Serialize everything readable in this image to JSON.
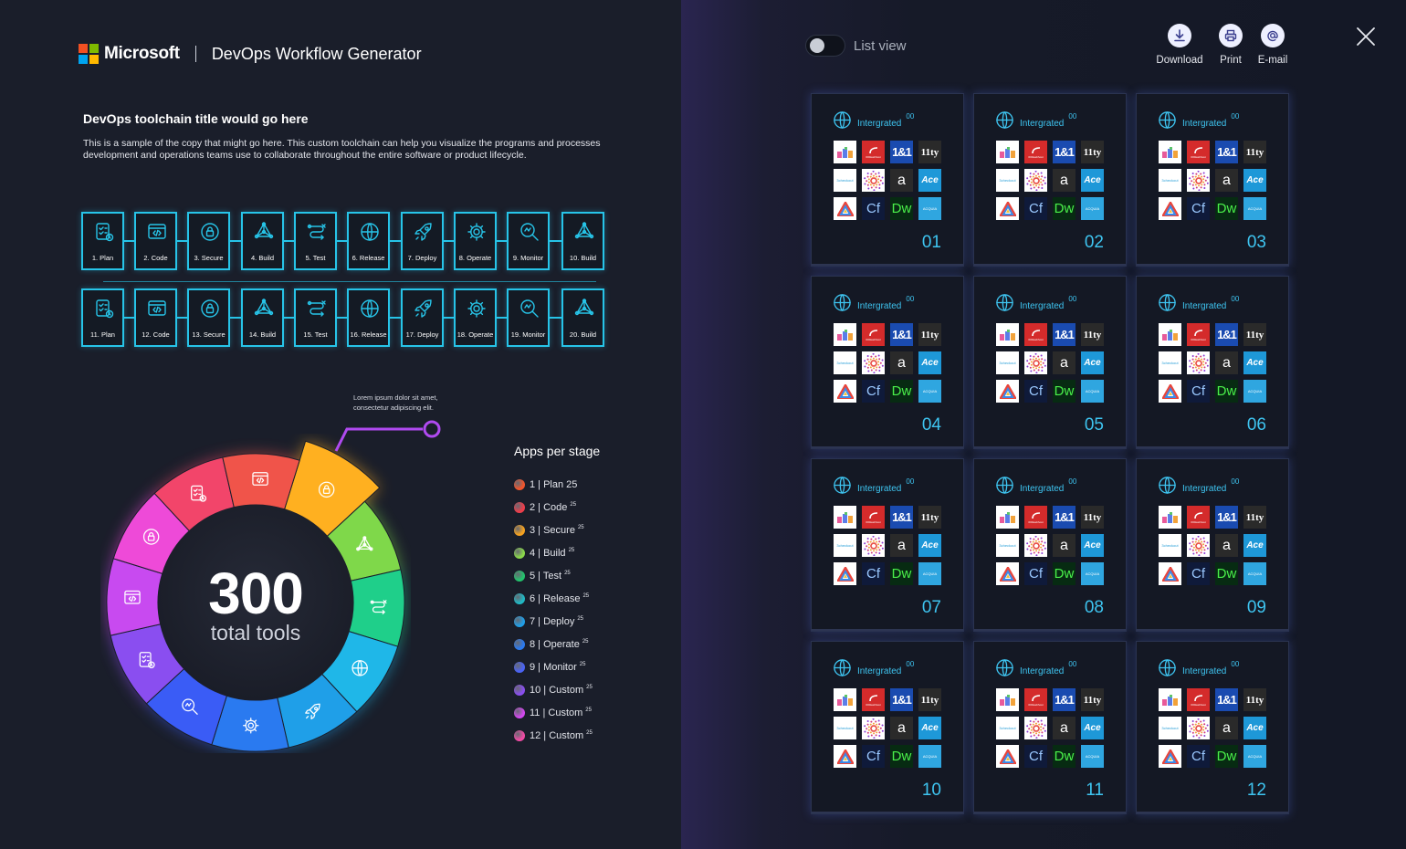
{
  "brand": {
    "company": "Microsoft",
    "app_title": "DevOps Workflow Generator"
  },
  "intro": {
    "title": "DevOps toolchain title would go here",
    "description": "This is a sample of the copy that might go here. This custom toolchain can help you visualize the programs and processes development and operations teams use to collaborate throughout the entire software or product lifecycle."
  },
  "stages_row1": [
    {
      "label": "1. Plan",
      "icon": "plan"
    },
    {
      "label": "2. Code",
      "icon": "code"
    },
    {
      "label": "3. Secure",
      "icon": "secure"
    },
    {
      "label": "4. Build",
      "icon": "build"
    },
    {
      "label": "5. Test",
      "icon": "test"
    },
    {
      "label": "6. Release",
      "icon": "release"
    },
    {
      "label": "7. Deploy",
      "icon": "deploy"
    },
    {
      "label": "8. Operate",
      "icon": "operate"
    },
    {
      "label": "9. Monitor",
      "icon": "monitor"
    },
    {
      "label": "10. Build",
      "icon": "build"
    }
  ],
  "stages_row2": [
    {
      "label": "11. Plan",
      "icon": "plan"
    },
    {
      "label": "12. Code",
      "icon": "code"
    },
    {
      "label": "13. Secure",
      "icon": "secure"
    },
    {
      "label": "14. Build",
      "icon": "build"
    },
    {
      "label": "15. Test",
      "icon": "test"
    },
    {
      "label": "16. Release",
      "icon": "release"
    },
    {
      "label": "17. Deploy",
      "icon": "deploy"
    },
    {
      "label": "18. Operate",
      "icon": "operate"
    },
    {
      "label": "19. Monitor",
      "icon": "monitor"
    },
    {
      "label": "20. Build",
      "icon": "build"
    }
  ],
  "donut": {
    "total": "300",
    "total_label": "total tools",
    "annotation": "Lorem ipsum dolor sit amet, consectetur adipiscing elit.",
    "segments": [
      {
        "stage": "secure",
        "value": 25,
        "color": "#ffb020",
        "highlight": true
      },
      {
        "stage": "build",
        "value": 25,
        "color": "#7fd84a"
      },
      {
        "stage": "test",
        "value": 25,
        "color": "#1fcf8a"
      },
      {
        "stage": "release",
        "value": 25,
        "color": "#1fb7e8"
      },
      {
        "stage": "deploy",
        "value": 25,
        "color": "#1f9fe8"
      },
      {
        "stage": "operate",
        "value": 25,
        "color": "#2a7af0"
      },
      {
        "stage": "monitor",
        "value": 25,
        "color": "#3a5cf6"
      },
      {
        "stage": "plan",
        "value": 25,
        "color": "#8a4ef0"
      },
      {
        "stage": "code",
        "value": 25,
        "color": "#c84af0"
      },
      {
        "stage": "secure",
        "value": 25,
        "color": "#ee4ad8"
      },
      {
        "stage": "plan",
        "value": 25,
        "color": "#f2456a"
      },
      {
        "stage": "code",
        "value": 25,
        "color": "#f0544a"
      }
    ]
  },
  "legend": {
    "title": "Apps per stage",
    "items": [
      {
        "text": "1 | Plan 25",
        "sup": "",
        "color": "#f2552c"
      },
      {
        "text": "2 | Code",
        "sup": "25",
        "color": "#ee3d4a"
      },
      {
        "text": "3 | Secure",
        "sup": "25",
        "color": "#f7a21e"
      },
      {
        "text": "4 | Build",
        "sup": "25",
        "color": "#8ad94a"
      },
      {
        "text": "5 | Test",
        "sup": "25",
        "color": "#22c46c"
      },
      {
        "text": "6 | Release",
        "sup": "25",
        "color": "#1fb8c4"
      },
      {
        "text": "7 | Deploy",
        "sup": "25",
        "color": "#1f9fe8"
      },
      {
        "text": "8 | Operate",
        "sup": "25",
        "color": "#2a7af0"
      },
      {
        "text": "9 | Monitor",
        "sup": "25",
        "color": "#4a63f6"
      },
      {
        "text": "10 | Custom",
        "sup": "25",
        "color": "#8a4ef0"
      },
      {
        "text": "11 | Custom",
        "sup": "25",
        "color": "#d447f0"
      },
      {
        "text": "12 | Custom",
        "sup": "25",
        "color": "#f24aa5"
      }
    ]
  },
  "toolbar": {
    "list_view_label": "List view",
    "list_view_on": false,
    "download_label": "Download",
    "print_label": "Print",
    "email_label": "E-mail"
  },
  "card_template": {
    "header_label": "Intergrated",
    "header_count": "00",
    "tiles": [
      {
        "text": "",
        "style": "Trello-like blocks"
      },
      {
        "text": "",
        "style": "red logo"
      },
      {
        "text": "1&1",
        "style": "1and1"
      },
      {
        "text": "11ty",
        "style": "11ty"
      },
      {
        "text": "3checkout",
        "style": "3checkout"
      },
      {
        "text": "",
        "style": "dots"
      },
      {
        "text": "a",
        "style": "a-logo"
      },
      {
        "text": "Ace",
        "style": "ace"
      },
      {
        "text": "",
        "style": "rainbow A"
      },
      {
        "text": "Cf",
        "style": "Cf"
      },
      {
        "text": "Dw",
        "style": "Dw"
      },
      {
        "text": "ACQUIA",
        "style": "acquia"
      }
    ]
  },
  "cards": [
    "01",
    "02",
    "03",
    "04",
    "05",
    "06",
    "07",
    "08",
    "09",
    "10",
    "11",
    "12"
  ]
}
